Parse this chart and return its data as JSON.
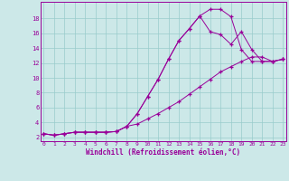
{
  "xlabel": "Windchill (Refroidissement éolien,°C)",
  "bg_color": "#cce8e8",
  "line_color": "#990099",
  "grid_color": "#99cccc",
  "line1_x": [
    0,
    1,
    2,
    3,
    4,
    5,
    6,
    7,
    8,
    9,
    10,
    11,
    12,
    13,
    14,
    15,
    16,
    17,
    18,
    19,
    20,
    21,
    22,
    23
  ],
  "line1_y": [
    2.5,
    2.3,
    2.5,
    2.7,
    2.7,
    2.7,
    2.7,
    2.8,
    3.5,
    5.2,
    7.5,
    9.8,
    12.5,
    15.0,
    16.6,
    18.3,
    19.2,
    19.2,
    18.2,
    13.8,
    12.2,
    12.2,
    12.2,
    12.5
  ],
  "line2_x": [
    0,
    1,
    2,
    3,
    4,
    5,
    6,
    7,
    8,
    9,
    10,
    11,
    12,
    13,
    14,
    15,
    16,
    17,
    18,
    19,
    20,
    21,
    22,
    23
  ],
  "line2_y": [
    2.5,
    2.3,
    2.5,
    2.7,
    2.7,
    2.7,
    2.7,
    2.8,
    3.5,
    5.2,
    7.5,
    9.8,
    12.5,
    15.0,
    16.6,
    18.3,
    16.2,
    15.8,
    14.5,
    16.2,
    13.8,
    12.2,
    12.2,
    12.5
  ],
  "line3_x": [
    0,
    1,
    2,
    3,
    4,
    5,
    6,
    7,
    8,
    9,
    10,
    11,
    12,
    13,
    14,
    15,
    16,
    17,
    18,
    19,
    20,
    21,
    22,
    23
  ],
  "line3_y": [
    2.5,
    2.3,
    2.5,
    2.7,
    2.7,
    2.7,
    2.7,
    2.8,
    3.5,
    3.8,
    4.5,
    5.2,
    6.0,
    6.8,
    7.8,
    8.8,
    9.8,
    10.8,
    11.5,
    12.2,
    12.8,
    12.8,
    12.2,
    12.5
  ],
  "yticks": [
    2,
    4,
    6,
    8,
    10,
    12,
    14,
    16,
    18
  ],
  "xticks": [
    0,
    1,
    2,
    3,
    4,
    5,
    6,
    7,
    8,
    9,
    10,
    11,
    12,
    13,
    14,
    15,
    16,
    17,
    18,
    19,
    20,
    21,
    22,
    23
  ],
  "ylim": [
    1.5,
    20.2
  ],
  "xlim": [
    -0.3,
    23.3
  ]
}
